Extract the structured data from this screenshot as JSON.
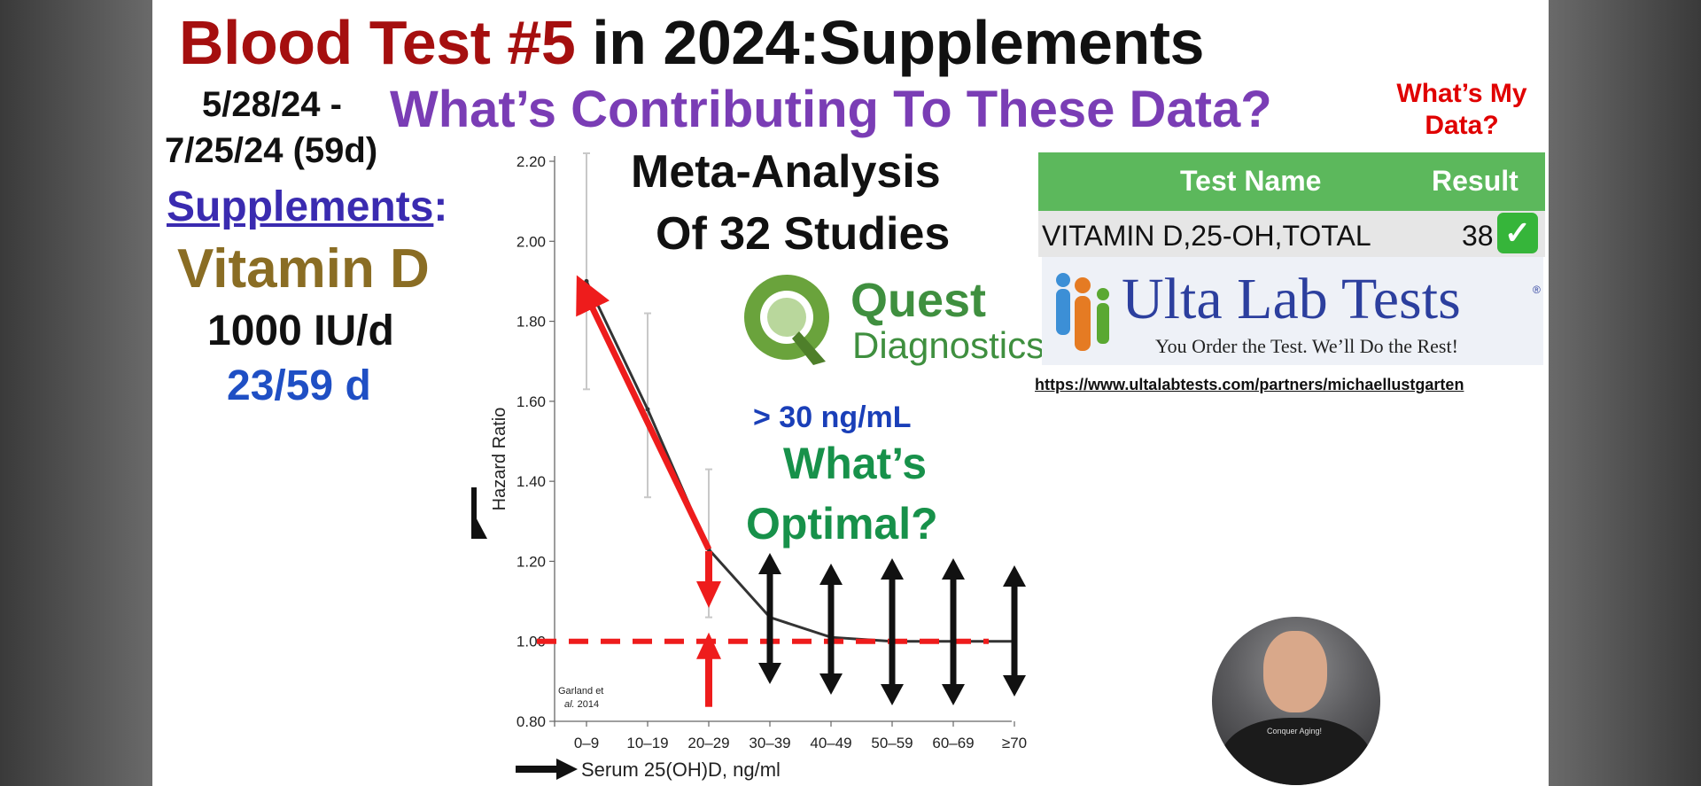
{
  "slide": {
    "title_part1": "Blood Test #5",
    "title_part2": " in 2024:",
    "title_part3": "Supplements",
    "date_line1": "5/28/24 -",
    "date_line2": "7/25/24 (59d)",
    "subtitle": "What’s Contributing To These Data?",
    "whats_my_data": "What’s My Data?",
    "supplements_label": "Supplements",
    "supplements_colon": ":",
    "supplement_name": "Vitamin D",
    "dose": "1000 IU/d",
    "days": "23/59 d",
    "meta_line1": "Meta-Analysis",
    "meta_line2": "Of 32 Studies",
    "quest_word": "Quest",
    "quest_diag": "Diagnostics",
    "quest_tm": "™",
    "anno_threshold": "> 30 ng/mL",
    "anno_optimal_1": "What’s",
    "anno_optimal_2": "Optimal?",
    "table": {
      "header_name": "Test Name",
      "header_result": "Result",
      "row_name": "VITAMIN D,25-OH,TOTAL",
      "row_result": "38",
      "row_check": "✓"
    },
    "ulta": {
      "name": "Ulta Lab Tests",
      "reg": "®",
      "tagline": "You Order the Test. We’ll Do the Rest!",
      "url": "https://www.ultalabtests.com/partners/michaellustgarten"
    },
    "presenter_shirt_text": "Conquer Aging!"
  },
  "colors": {
    "title_red": "#a50f0f",
    "subtitle_purple": "#7a3db5",
    "vitd_gold": "#8a6d24",
    "days_blue": "#1f4fc4",
    "table_header_green": "#5cb85c",
    "quest_green": "#3f8f3f",
    "optimal_green": "#17914a",
    "arrow_red": "#ee1c1c"
  },
  "chart_data": {
    "type": "line",
    "categories": [
      "0–9",
      "10–19",
      "20–29",
      "30–39",
      "40–49",
      "50–59",
      "60–69",
      "≥70"
    ],
    "series": [
      {
        "values": [
          1.9,
          1.58,
          1.23,
          1.06,
          1.01,
          1.0,
          1.0,
          1.0
        ]
      }
    ],
    "error_bars": [
      {
        "low": 1.63,
        "high": 2.22
      },
      {
        "low": 1.36,
        "high": 1.82
      },
      {
        "low": 1.06,
        "high": 1.43
      },
      null,
      null,
      null,
      null,
      null
    ],
    "ylabel": "Hazard Ratio",
    "xlabel": "Serum 25(OH)D, ng/ml",
    "ylim": [
      0.8,
      2.2
    ],
    "yticks": [
      "0.80",
      "1.00",
      "1.20",
      "1.40",
      "1.60",
      "1.80",
      "2.00",
      "2.20"
    ],
    "reference_line": 1.0,
    "citation_line1": "Garland et",
    "citation_line1_italic": "al.",
    "citation_line2": " 2014",
    "grid": false,
    "legend": "none"
  }
}
